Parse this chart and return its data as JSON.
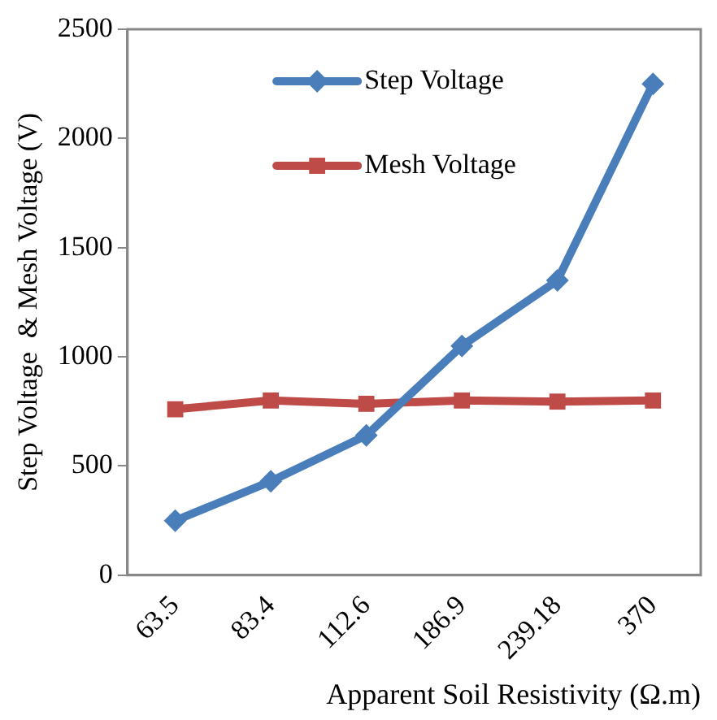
{
  "chart_data": {
    "type": "line",
    "xlabel": "Apparent Soil Resistivity (Ω.m)",
    "ylabel": "Step Voltage  & Mesh Voltage (V)",
    "categories": [
      "63.5",
      "83.4",
      "112.6",
      "186.9",
      "239.18",
      "370"
    ],
    "series": [
      {
        "name": "Step Voltage",
        "color": "#4a7ebb",
        "marker": "diamond",
        "values": [
          250,
          430,
          640,
          1050,
          1350,
          2250
        ]
      },
      {
        "name": "Mesh Voltage",
        "color": "#be4b48",
        "marker": "square",
        "values": [
          760,
          800,
          785,
          800,
          795,
          800
        ]
      }
    ],
    "ylim": [
      0,
      2500
    ],
    "yticks": [
      0,
      500,
      1000,
      1500,
      2000,
      2500
    ],
    "grid": false,
    "legend": "top right",
    "line_style": "solid"
  }
}
